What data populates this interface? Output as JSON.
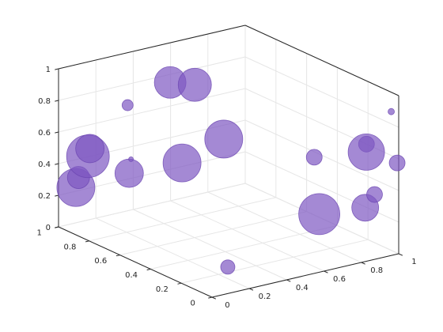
{
  "chart_data": {
    "type": "scatter",
    "variant": "scatter3d-bubbles",
    "title": "",
    "xlabel": "",
    "ylabel": "",
    "zlabel": "",
    "grid": true,
    "box": true,
    "xlim": [
      0,
      1
    ],
    "ylim": [
      0,
      1
    ],
    "zlim": [
      0,
      1
    ],
    "x_ticks": [
      "0",
      "0.2",
      "0.4",
      "0.6",
      "0.8",
      "1"
    ],
    "y_ticks": [
      "0",
      "0.2",
      "0.4",
      "0.6",
      "0.8",
      "1"
    ],
    "z_ticks": [
      "0",
      "0.2",
      "0.4",
      "0.6",
      "0.8",
      "1"
    ],
    "marker_color": "#7e57c2",
    "marker_edge_color": "#6a45b0",
    "marker_alpha": 0.7,
    "points": [
      {
        "x": 0.02,
        "y": 0.82,
        "z": 0.57,
        "size": 18
      },
      {
        "x": 0.1,
        "y": 0.93,
        "z": 0.45,
        "size": 27
      },
      {
        "x": 0.0,
        "y": 0.87,
        "z": 0.37,
        "size": 14
      },
      {
        "x": 0.06,
        "y": 0.96,
        "z": 0.25,
        "size": 24
      },
      {
        "x": 0.14,
        "y": 0.71,
        "z": 0.43,
        "size": 18
      },
      {
        "x": 0.0,
        "y": 0.55,
        "z": 0.97,
        "size": 7
      },
      {
        "x": 0.36,
        "y": 0.55,
        "z": 1.0,
        "size": 21
      },
      {
        "x": 0.45,
        "y": 0.82,
        "z": 0.87,
        "size": 20
      },
      {
        "x": 0.63,
        "y": 0.69,
        "z": 0.52,
        "size": 24
      },
      {
        "x": 0.53,
        "y": 0.84,
        "z": 0.33,
        "size": 24
      },
      {
        "x": 0.29,
        "y": 0.25,
        "z": 0.0,
        "size": 9
      },
      {
        "x": 0.78,
        "y": 0.25,
        "z": 0.2,
        "size": 26
      },
      {
        "x": 0.95,
        "y": 0.15,
        "z": 0.59,
        "size": 23
      },
      {
        "x": 1.0,
        "y": 0.21,
        "z": 0.6,
        "size": 10
      },
      {
        "x": 1.0,
        "y": 0.01,
        "z": 0.57,
        "size": 10
      },
      {
        "x": 0.87,
        "y": 0.06,
        "z": 0.3,
        "size": 17
      },
      {
        "x": 0.92,
        "y": 0.06,
        "z": 0.37,
        "size": 10
      },
      {
        "x": 0.86,
        "y": 0.38,
        "z": 0.48,
        "size": 10
      },
      {
        "x": 0.96,
        "y": 0.0,
        "z": 0.91,
        "size": 4
      },
      {
        "x": 0.01,
        "y": 0.54,
        "z": 0.63,
        "size": 3
      }
    ]
  }
}
